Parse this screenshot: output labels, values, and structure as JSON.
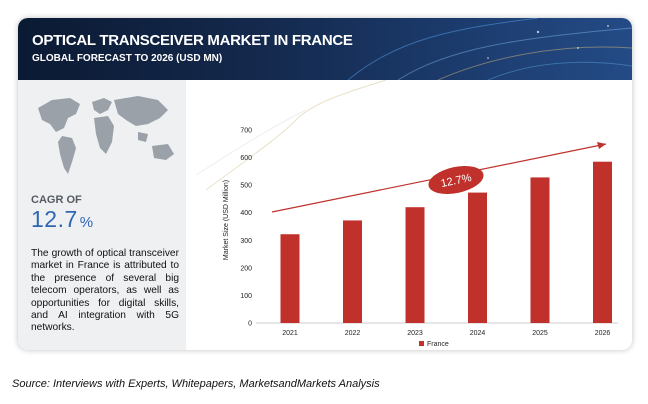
{
  "header": {
    "title": "OPTICAL TRANSCEIVER MARKET IN FRANCE",
    "subtitle": "GLOBAL FORECAST TO 2026 (USD MN)"
  },
  "sidebar": {
    "cagr_label": "CAGR OF",
    "cagr_value": "12.7",
    "cagr_unit": "%",
    "description": "The growth of optical transceiver market in France is attributed to the presence of several big telecom operators, as well as opportunities for digital skills, and AI integration with 5G networks."
  },
  "source": "Source: Interviews with Experts, Whitepapers, MarketsandMarkets Analysis",
  "colors": {
    "bar": "#c0312b",
    "arrow": "#c0312b",
    "header": "#14294d",
    "accent": "#2f66b3"
  },
  "chart_data": {
    "type": "bar",
    "categories": [
      "2021",
      "2022",
      "2023",
      "2024",
      "2025",
      "2026"
    ],
    "series": [
      {
        "name": "France",
        "values": [
          322,
          372,
          420,
          473,
          528,
          585
        ]
      }
    ],
    "ylabel": "Market Size (USD Million)",
    "ylim": [
      0,
      700
    ],
    "yticks": [
      0,
      100,
      200,
      300,
      400,
      500,
      600,
      700
    ],
    "grid": false,
    "legend": "bottom",
    "annotation": "12.7%"
  }
}
